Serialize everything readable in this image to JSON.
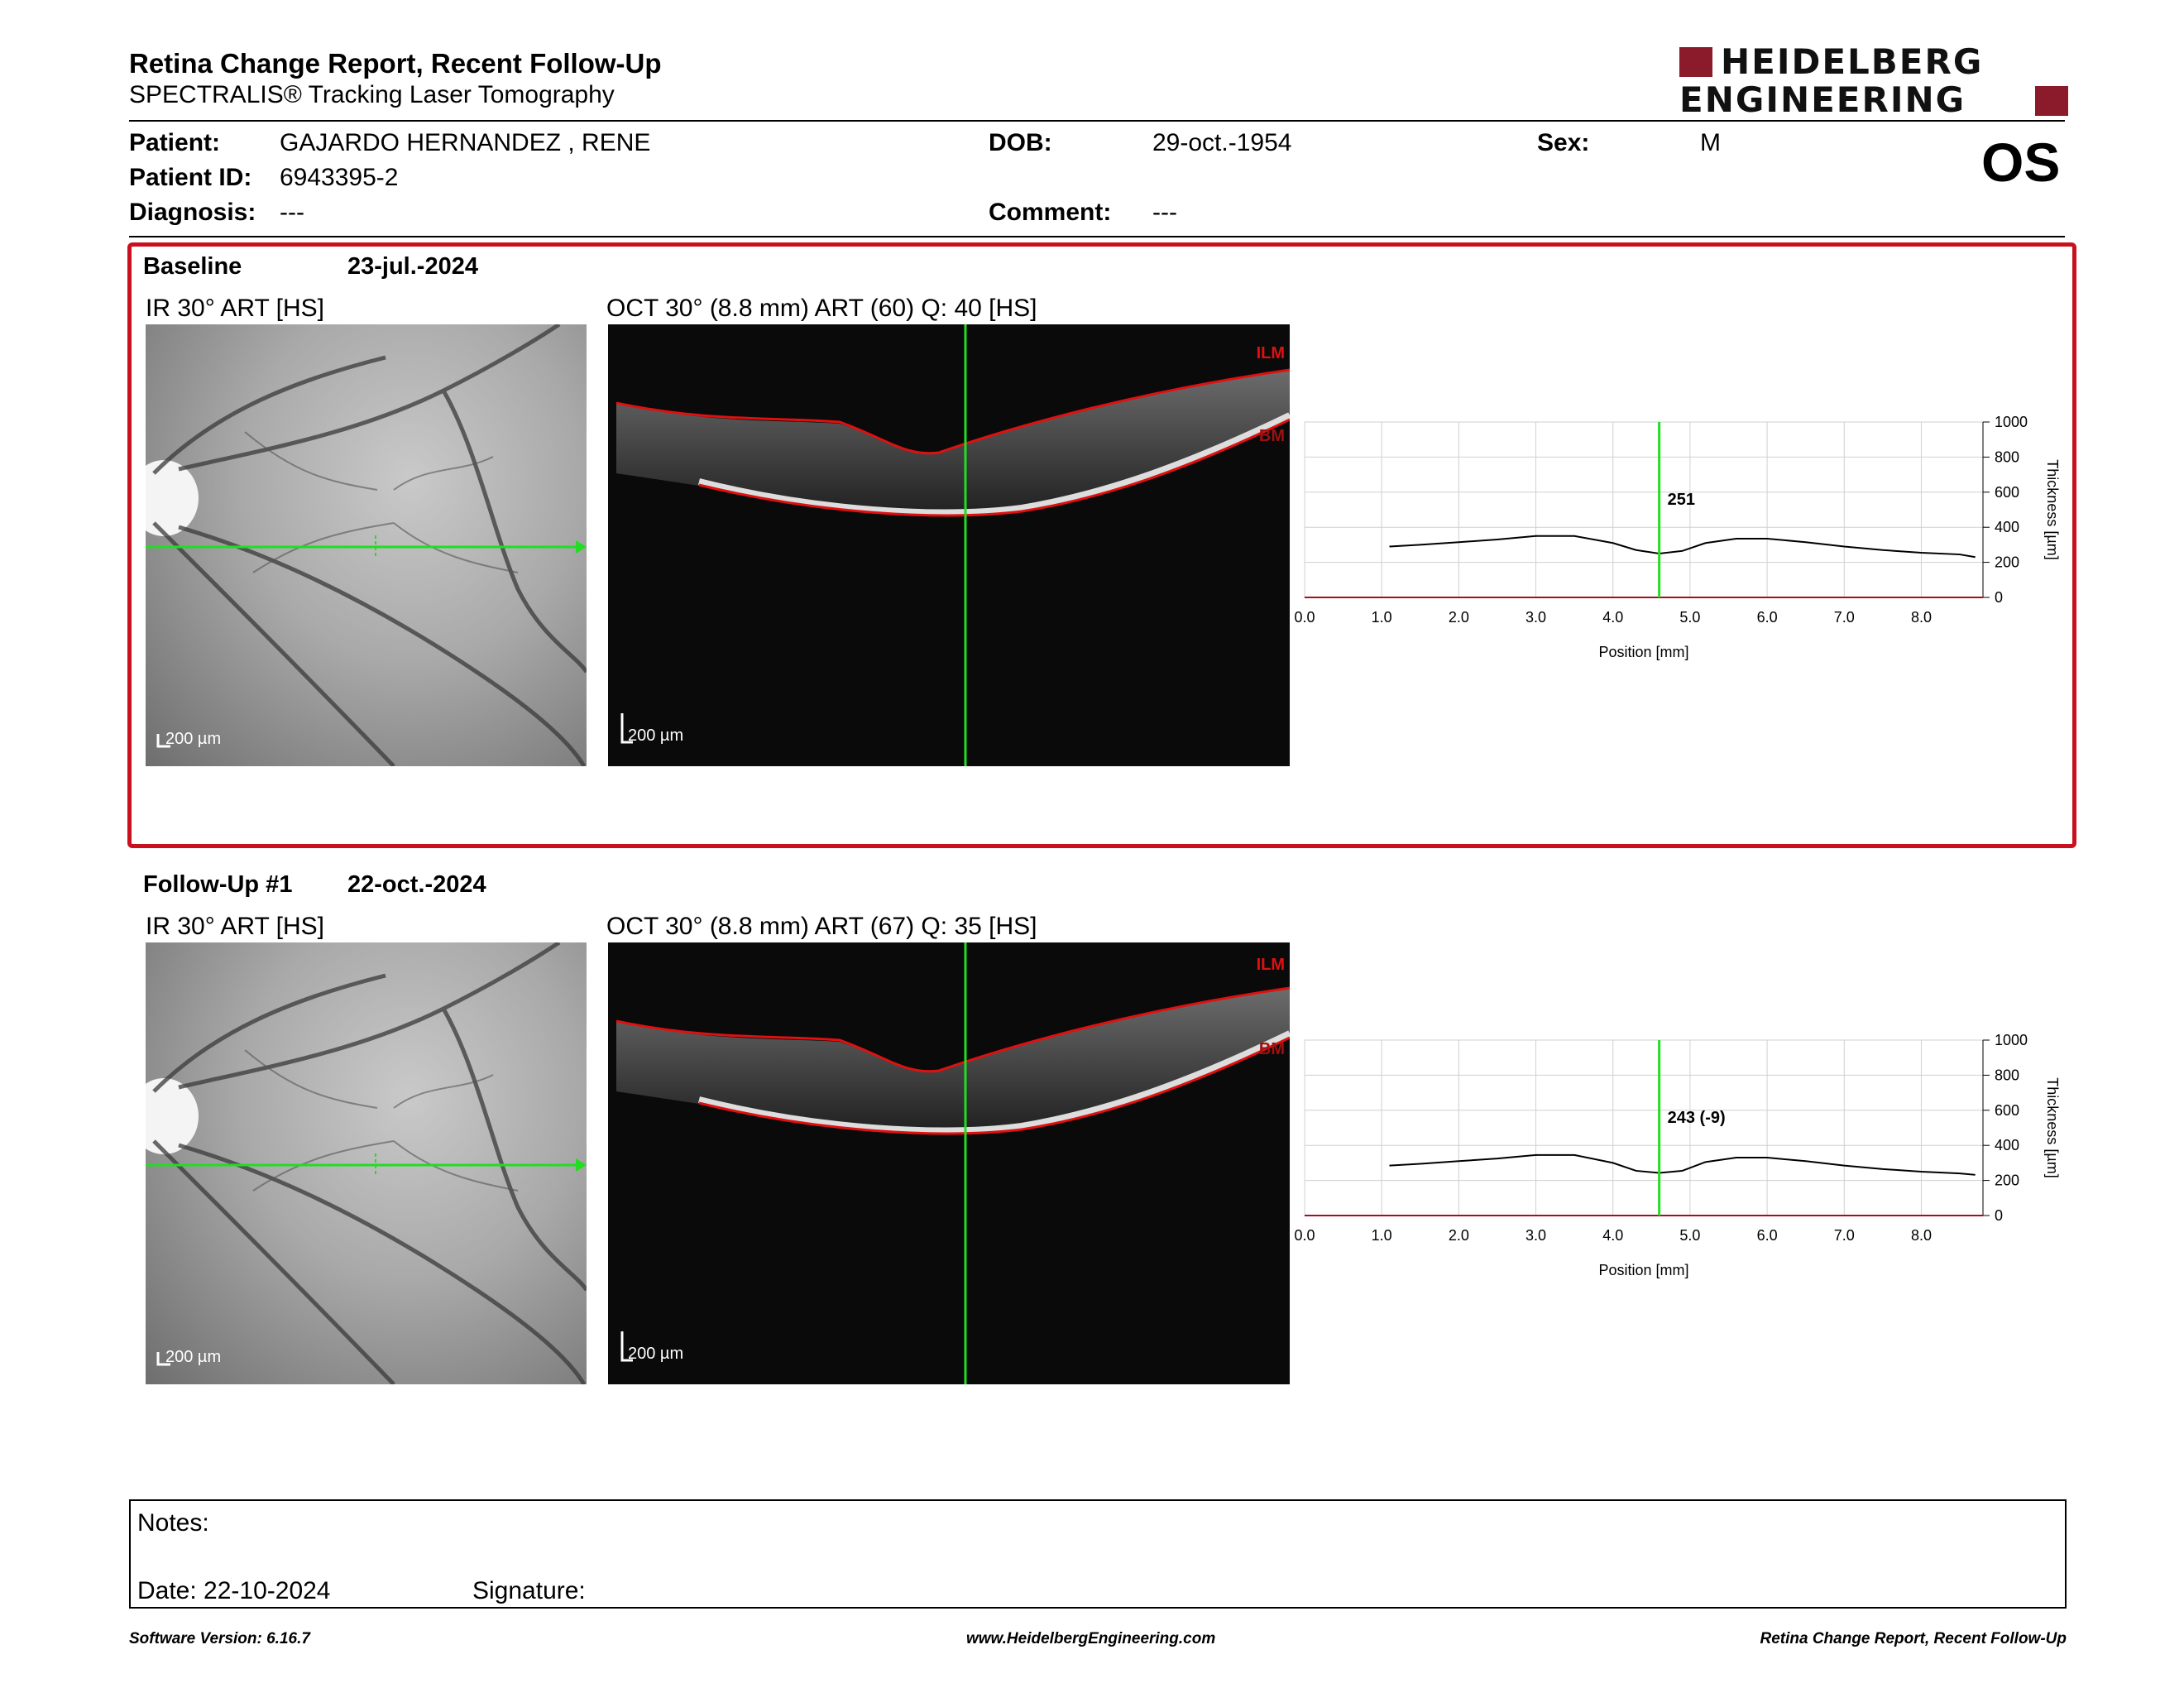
{
  "header": {
    "title": "Retina Change Report, Recent Follow-Up",
    "subtitle": "SPECTRALIS® Tracking Laser Tomography",
    "logo_line1": "HEIDELBERG",
    "logo_line2": "ENGINEERING",
    "eye": "OS"
  },
  "patient": {
    "patient_label": "Patient:",
    "patient_value": "GAJARDO HERNANDEZ , RENE",
    "id_label": "Patient ID:",
    "id_value": "6943395-2",
    "diagnosis_label": "Diagnosis:",
    "diagnosis_value": "---",
    "dob_label": "DOB:",
    "dob_value": "29-oct.-1954",
    "comment_label": "Comment:",
    "comment_value": "---",
    "sex_label": "Sex:",
    "sex_value": "M"
  },
  "baseline": {
    "label": "Baseline",
    "date": "23-jul.-2024",
    "ir_label": "IR 30° ART [HS]",
    "oct_label": "OCT 30° (8.8 mm) ART (60) Q: 40 [HS]",
    "ir_scale": "200 µm",
    "oct_scale": "200 µm",
    "ilm": "ILM",
    "bm": "BM"
  },
  "followup": {
    "label": "Follow-Up #1",
    "date": "22-oct.-2024",
    "ir_label": "IR 30° ART [HS]",
    "oct_label": "OCT 30° (8.8 mm) ART (67) Q: 35 [HS]",
    "ir_scale": "200 µm",
    "oct_scale": "200 µm",
    "ilm": "ILM",
    "bm": "BM"
  },
  "chart_data": [
    {
      "type": "line",
      "xlabel": "Position [mm]",
      "ylabel": "Thickness [µm]",
      "xlim": [
        0,
        8.8
      ],
      "ylim": [
        0,
        1000
      ],
      "x_ticks": [
        "0.0",
        "1.0",
        "2.0",
        "3.0",
        "4.0",
        "5.0",
        "6.0",
        "7.0",
        "8.0"
      ],
      "y_ticks": [
        "0",
        "200",
        "400",
        "600",
        "800",
        "1000"
      ],
      "grid": true,
      "cursor_x": 4.6,
      "annotation": "251",
      "series": [
        {
          "x": [
            1.1,
            1.5,
            2.0,
            2.5,
            3.0,
            3.5,
            4.0,
            4.3,
            4.6,
            4.9,
            5.2,
            5.6,
            6.0,
            6.5,
            7.0,
            7.5,
            8.0,
            8.5,
            8.7
          ],
          "values": [
            290,
            300,
            315,
            330,
            350,
            350,
            310,
            270,
            250,
            265,
            310,
            335,
            335,
            315,
            290,
            270,
            255,
            245,
            230
          ]
        }
      ]
    },
    {
      "type": "line",
      "xlabel": "Position [mm]",
      "ylabel": "Thickness [µm]",
      "xlim": [
        0,
        8.8
      ],
      "ylim": [
        0,
        1000
      ],
      "x_ticks": [
        "0.0",
        "1.0",
        "2.0",
        "3.0",
        "4.0",
        "5.0",
        "6.0",
        "7.0",
        "8.0"
      ],
      "y_ticks": [
        "0",
        "200",
        "400",
        "600",
        "800",
        "1000"
      ],
      "grid": true,
      "cursor_x": 4.6,
      "annotation": "243 (-9)",
      "series": [
        {
          "x": [
            1.1,
            1.5,
            2.0,
            2.5,
            3.0,
            3.5,
            4.0,
            4.3,
            4.6,
            4.9,
            5.2,
            5.6,
            6.0,
            6.5,
            7.0,
            7.5,
            8.0,
            8.5,
            8.7
          ],
          "values": [
            285,
            295,
            310,
            325,
            345,
            345,
            300,
            255,
            243,
            255,
            305,
            330,
            330,
            310,
            285,
            265,
            250,
            240,
            232
          ]
        }
      ]
    }
  ],
  "notes": {
    "notes_label": "Notes:",
    "date_label": "Date: 22-10-2024",
    "signature_label": "Signature:"
  },
  "footer": {
    "left": "Software Version: 6.16.7",
    "center": "www.HeidelbergEngineering.com",
    "right": "Retina Change Report, Recent Follow-Up"
  }
}
